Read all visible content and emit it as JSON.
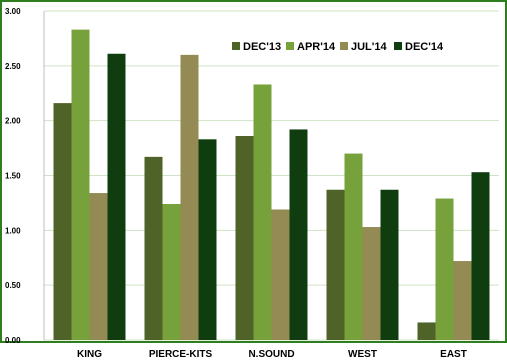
{
  "chart_data": {
    "type": "bar",
    "categories": [
      "KING",
      "PIERCE-KITS",
      "N.SOUND",
      "WEST",
      "EAST"
    ],
    "series": [
      {
        "name": "DEC'13",
        "color": "#4f6228",
        "values": [
          2.16,
          1.67,
          1.86,
          1.37,
          0.16
        ]
      },
      {
        "name": "APR'14",
        "color": "#77a13a",
        "values": [
          2.83,
          1.24,
          2.33,
          1.7,
          1.29
        ]
      },
      {
        "name": "JUL'14",
        "color": "#948a54",
        "values": [
          1.34,
          2.6,
          1.19,
          1.03,
          0.72
        ]
      },
      {
        "name": "DEC'14",
        "color": "#0f3d0f",
        "values": [
          2.61,
          1.83,
          1.92,
          1.37,
          1.53
        ]
      }
    ],
    "yticks": [
      "0.00",
      "0.50",
      "1.00",
      "1.50",
      "2.00",
      "2.50",
      "3.00"
    ],
    "ylim": [
      0,
      3
    ],
    "grid": true,
    "legend_position": "top-right",
    "border_color": "#2e7d1f",
    "grid_color": "#cfe3c6"
  }
}
